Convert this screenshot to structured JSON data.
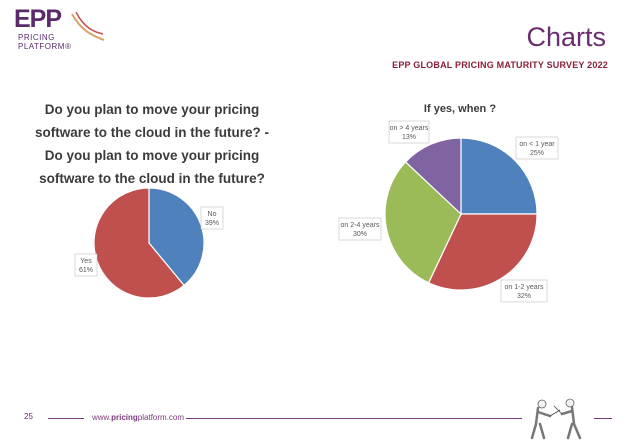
{
  "header": {
    "logo_main": "EPP",
    "logo_line1": "PRICING",
    "logo_line2": "PLATFORM",
    "logo_tm": "®",
    "page_title": "Charts",
    "survey_title": "EPP GLOBAL PRICING MATURITY SURVEY 2022"
  },
  "footer": {
    "page_number": "25",
    "url_prefix": "www.",
    "url_bold": "pricing",
    "url_suffix": "platform.com"
  },
  "colors": {
    "brand_purple": "#6a2d6f",
    "blue": "#4f81bd",
    "red": "#c0504d",
    "green": "#9bbb59",
    "purple": "#8064a2"
  },
  "chart_data": [
    {
      "type": "pie",
      "title_lines": [
        "Do you plan to move your pricing",
        "software to the cloud in the future? -",
        "Do you plan to move your pricing",
        "software to the cloud in the future?"
      ],
      "slices": [
        {
          "label": "No",
          "value": 39,
          "value_label": "39%",
          "color": "#4f81bd"
        },
        {
          "label": "Yes",
          "value": 61,
          "value_label": "61%",
          "color": "#c0504d"
        }
      ]
    },
    {
      "type": "pie",
      "title": "If yes, when ?",
      "slices": [
        {
          "label": "on < 1 year",
          "value": 25,
          "value_label": "25%",
          "color": "#4f81bd"
        },
        {
          "label": "on 1-2 years",
          "value": 32,
          "value_label": "32%",
          "color": "#c0504d"
        },
        {
          "label": "on 2-4 years",
          "value": 30,
          "value_label": "30%",
          "color": "#9bbb59"
        },
        {
          "label": "on > 4 years",
          "value": 13,
          "value_label": "13%",
          "color": "#8064a2"
        }
      ]
    }
  ]
}
